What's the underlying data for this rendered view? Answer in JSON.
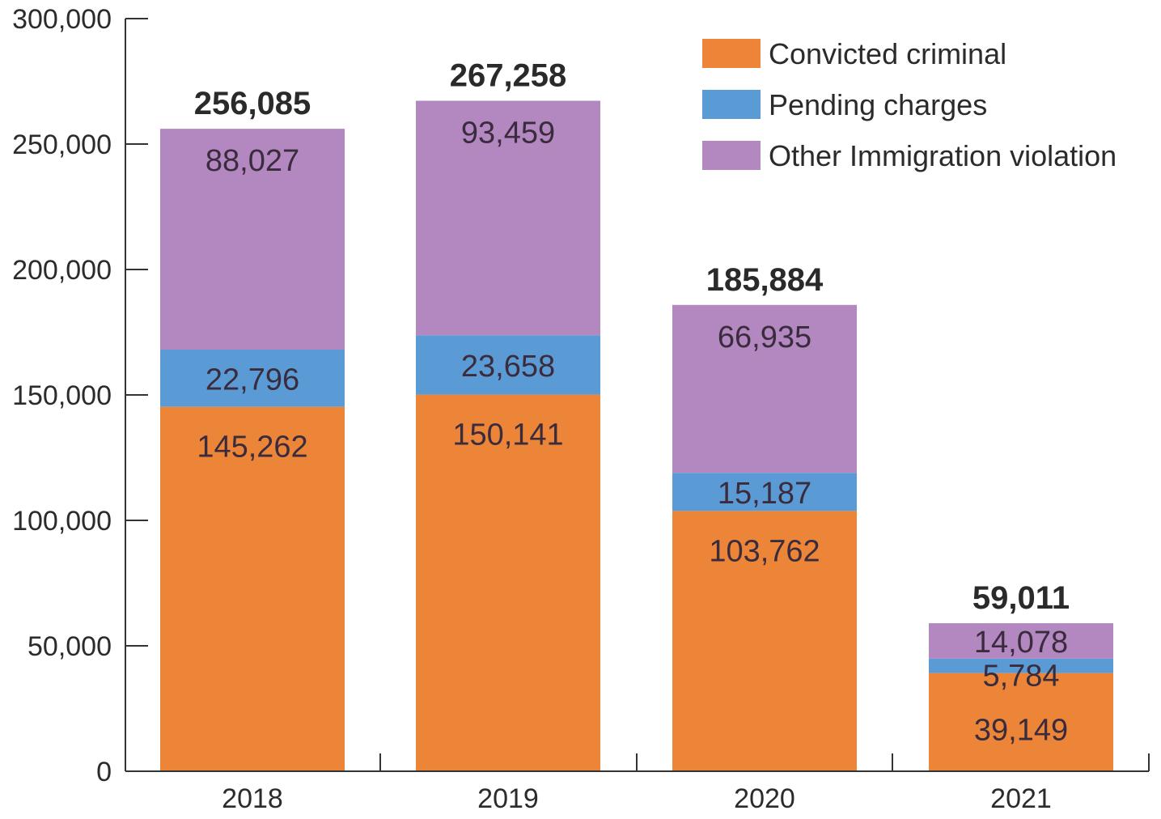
{
  "chart_data": {
    "type": "bar",
    "stacked": true,
    "categories": [
      "2018",
      "2019",
      "2020",
      "2021"
    ],
    "series": [
      {
        "name": "Convicted criminal",
        "values": [
          145262,
          150141,
          103762,
          39149
        ],
        "color": "#ec8538"
      },
      {
        "name": "Pending charges",
        "values": [
          22796,
          23658,
          15187,
          5784
        ],
        "color": "#5b9bd5"
      },
      {
        "name": "Other Immigration violation",
        "values": [
          88027,
          93459,
          66935,
          14078
        ],
        "color": "#b387c0"
      }
    ],
    "segment_labels": [
      [
        "145,262",
        "22,796",
        "88,027"
      ],
      [
        "150,141",
        "23,658",
        "93,459"
      ],
      [
        "103,762",
        "15,187",
        "66,935"
      ],
      [
        "39,149",
        "5,784",
        "14,078"
      ]
    ],
    "totals": [
      256085,
      267258,
      185884,
      59011
    ],
    "total_labels": [
      "256,085",
      "267,258",
      "185,884",
      "59,011"
    ],
    "ylim": [
      0,
      300000
    ],
    "yticks": [
      0,
      50000,
      100000,
      150000,
      200000,
      250000,
      300000
    ],
    "ytick_labels": [
      "0",
      "50,000",
      "100,000",
      "150,000",
      "200,000",
      "250,000",
      "300,000"
    ],
    "legend_position": "top-right",
    "grid": false
  }
}
